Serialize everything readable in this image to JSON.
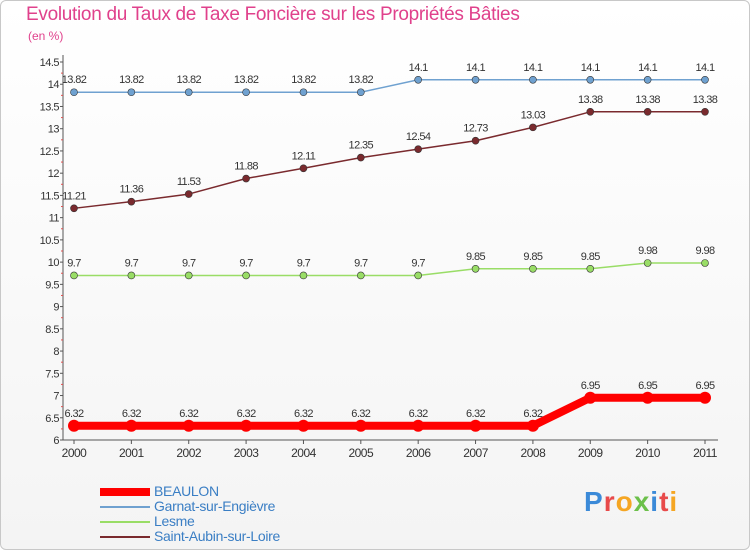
{
  "chart_data": {
    "type": "line",
    "title": "Evolution du Taux de Taxe Foncière sur les Propriétés Bâties",
    "subtitle": "(en %)",
    "x": [
      "2000",
      "2001",
      "2002",
      "2003",
      "2004",
      "2005",
      "2006",
      "2007",
      "2008",
      "2009",
      "2010",
      "2011"
    ],
    "y_ticks": [
      "6",
      "6.5",
      "7",
      "7.5",
      "8",
      "8.5",
      "9",
      "9.5",
      "10",
      "10.5",
      "11",
      "11.5",
      "12",
      "12.5",
      "13",
      "13.5",
      "14",
      "14.5"
    ],
    "ylim": [
      6,
      14.5
    ],
    "grid": false,
    "legend_position": "bottom-left",
    "series": [
      {
        "name": "BEAULON",
        "color": "#ff0000",
        "values": [
          6.32,
          6.32,
          6.32,
          6.32,
          6.32,
          6.32,
          6.32,
          6.32,
          6.32,
          6.95,
          6.95,
          6.95
        ],
        "labels": [
          "6.32",
          "6.32",
          "6.32",
          "6.32",
          "6.32",
          "6.32",
          "6.32",
          "6.32",
          "6.32",
          "6.95",
          "6.95",
          "6.95"
        ]
      },
      {
        "name": "Garnat-sur-Engièvre",
        "color": "#6fa1d0",
        "values": [
          13.82,
          13.82,
          13.82,
          13.82,
          13.82,
          13.82,
          14.1,
          14.1,
          14.1,
          14.1,
          14.1,
          14.1
        ],
        "labels": [
          "13.82",
          "13.82",
          "13.82",
          "13.82",
          "13.82",
          "13.82",
          "14.1",
          "14.1",
          "14.1",
          "14.1",
          "14.1",
          "14.1"
        ]
      },
      {
        "name": "Lesme",
        "color": "#99dd66",
        "values": [
          9.7,
          9.7,
          9.7,
          9.7,
          9.7,
          9.7,
          9.7,
          9.85,
          9.85,
          9.85,
          9.98,
          9.98
        ],
        "labels": [
          "9.7",
          "9.7",
          "9.7",
          "9.7",
          "9.7",
          "9.7",
          "9.7",
          "9.85",
          "9.85",
          "9.85",
          "9.98",
          "9.98"
        ]
      },
      {
        "name": "Saint-Aubin-sur-Loire",
        "color": "#7a2a2e",
        "values": [
          11.21,
          11.36,
          11.53,
          11.88,
          12.11,
          12.35,
          12.54,
          12.73,
          13.03,
          13.38,
          13.38,
          13.38
        ],
        "labels": [
          "11.21",
          "11.36",
          "11.53",
          "11.88",
          "12.11",
          "12.35",
          "12.54",
          "12.73",
          "13.03",
          "13.38",
          "13.38",
          "13.38"
        ]
      }
    ]
  },
  "brand": {
    "letters": [
      "P",
      "r",
      "o",
      "x",
      "i",
      "t",
      "i"
    ],
    "colors": [
      "#3b8ad8",
      "#e84a4a",
      "#f5a623",
      "#6cc04a",
      "#3b8ad8",
      "#e84a4a",
      "#f5a623"
    ]
  }
}
